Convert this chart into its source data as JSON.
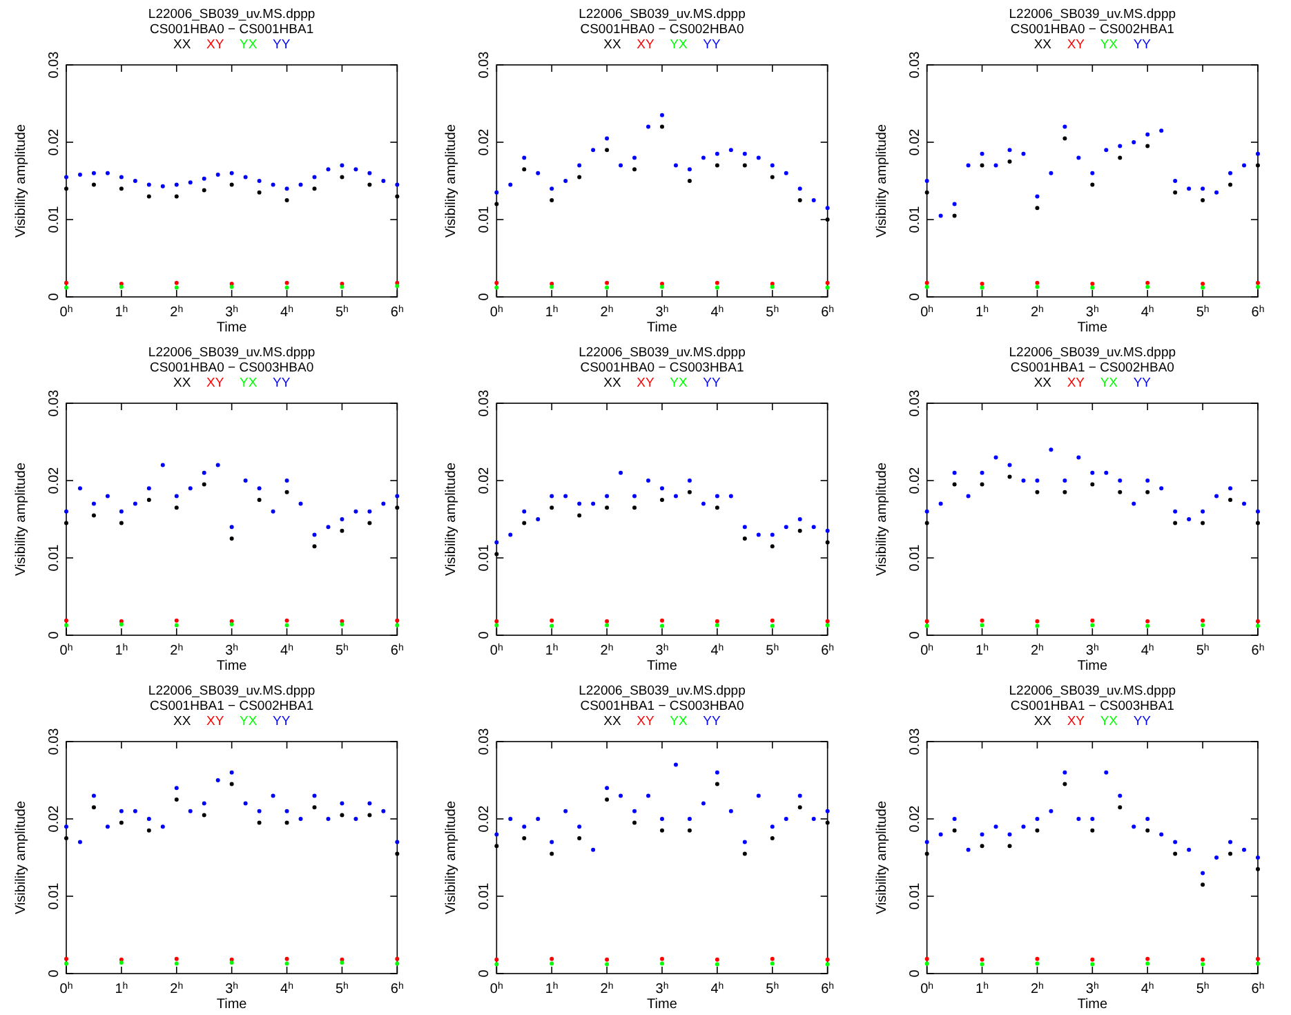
{
  "chart_data": [
    {
      "type": "scatter",
      "title": "L22006_SB039_uv.MS.dppp",
      "subtitle": "CS001HBA0 − CS001HBA1",
      "xlabel": "Time",
      "ylabel": "Visibility amplitude",
      "legend": "top",
      "marker": "circle",
      "xlim": [
        0,
        6
      ],
      "xticks": [
        {
          "value": 0,
          "label": "0$^{h}$"
        },
        {
          "value": 1,
          "label": "1$^{h}$"
        },
        {
          "value": 2,
          "label": "2$^{h}$"
        },
        {
          "value": 3,
          "label": "3$^{h}$"
        },
        {
          "value": 4,
          "label": "4$^{h}$"
        },
        {
          "value": 5,
          "label": "5$^{h}$"
        },
        {
          "value": 6,
          "label": "6$^{h}$"
        }
      ],
      "ylim": [
        0,
        0.03
      ],
      "yticks": [
        0,
        0.01,
        0.02,
        0.03
      ],
      "x": [
        0,
        0.25,
        0.5,
        0.75,
        1,
        1.25,
        1.5,
        1.75,
        2,
        2.25,
        2.5,
        2.75,
        3,
        3.25,
        3.5,
        3.75,
        4,
        4.25,
        4.5,
        4.75,
        5,
        5.25,
        5.5,
        5.75,
        6
      ],
      "series": [
        {
          "name": "XX",
          "color": "#000000",
          "x": [
            0,
            0.5,
            1,
            1.5,
            2,
            2.5,
            3,
            3.5,
            4,
            4.5,
            5,
            5.5,
            6
          ],
          "values": [
            0.014,
            0.0145,
            0.014,
            0.013,
            0.013,
            0.0138,
            0.0145,
            0.0135,
            0.0125,
            0.014,
            0.0155,
            0.0145,
            0.013
          ]
        },
        {
          "name": "XY",
          "color": "#ff0000",
          "x": [
            0,
            1,
            2,
            3,
            4,
            5,
            6
          ],
          "values": [
            0.0018,
            0.0017,
            0.0018,
            0.0017,
            0.0018,
            0.0017,
            0.0018
          ]
        },
        {
          "name": "YX",
          "color": "#00ff00",
          "x": [
            0,
            1,
            2,
            3,
            4,
            5,
            6
          ],
          "values": [
            0.0012,
            0.0013,
            0.0012,
            0.0013,
            0.0012,
            0.0013,
            0.0014
          ]
        },
        {
          "name": "YY",
          "color": "#0000ff",
          "values": [
            0.0155,
            0.0158,
            0.016,
            0.016,
            0.0155,
            0.015,
            0.0145,
            0.0143,
            0.0145,
            0.0148,
            0.0153,
            0.0158,
            0.016,
            0.0155,
            0.015,
            0.0145,
            0.014,
            0.0145,
            0.0155,
            0.0165,
            0.017,
            0.0165,
            0.016,
            0.015,
            0.0145
          ]
        }
      ]
    },
    {
      "type": "scatter",
      "title": "L22006_SB039_uv.MS.dppp",
      "subtitle": "CS001HBA0 − CS002HBA0",
      "xlabel": "Time",
      "ylabel": "Visibility amplitude",
      "legend": "top",
      "marker": "circle",
      "xlim": [
        0,
        6
      ],
      "xticks": [
        {
          "value": 0,
          "label": "0$^{h}$"
        },
        {
          "value": 1,
          "label": "1$^{h}$"
        },
        {
          "value": 2,
          "label": "2$^{h}$"
        },
        {
          "value": 3,
          "label": "3$^{h}$"
        },
        {
          "value": 4,
          "label": "4$^{h}$"
        },
        {
          "value": 5,
          "label": "5$^{h}$"
        },
        {
          "value": 6,
          "label": "6$^{h}$"
        }
      ],
      "ylim": [
        0,
        0.03
      ],
      "yticks": [
        0,
        0.01,
        0.02,
        0.03
      ],
      "x": [
        0,
        0.25,
        0.5,
        0.75,
        1,
        1.25,
        1.5,
        1.75,
        2,
        2.25,
        2.5,
        2.75,
        3,
        3.25,
        3.5,
        3.75,
        4,
        4.25,
        4.5,
        4.75,
        5,
        5.25,
        5.5,
        5.75,
        6
      ],
      "series": [
        {
          "name": "XX",
          "color": "#000000",
          "x": [
            0,
            0.5,
            1,
            1.5,
            2,
            2.5,
            3,
            3.5,
            4,
            4.5,
            5,
            5.5,
            6
          ],
          "values": [
            0.012,
            0.0165,
            0.0125,
            0.0155,
            0.019,
            0.0165,
            0.022,
            0.015,
            0.017,
            0.017,
            0.0155,
            0.0125,
            0.01
          ]
        },
        {
          "name": "XY",
          "color": "#ff0000",
          "x": [
            0,
            1,
            2,
            3,
            4,
            5,
            6
          ],
          "values": [
            0.0018,
            0.0017,
            0.0018,
            0.0017,
            0.0018,
            0.0017,
            0.0018
          ]
        },
        {
          "name": "YX",
          "color": "#00ff00",
          "x": [
            0,
            1,
            2,
            3,
            4,
            5,
            6
          ],
          "values": [
            0.0012,
            0.0013,
            0.0012,
            0.0013,
            0.0012,
            0.0013,
            0.0012
          ]
        },
        {
          "name": "YY",
          "color": "#0000ff",
          "values": [
            0.0135,
            0.0145,
            0.018,
            0.016,
            0.014,
            0.015,
            0.017,
            0.019,
            0.0205,
            0.017,
            0.018,
            0.022,
            0.0235,
            0.017,
            0.0165,
            0.018,
            0.0185,
            0.019,
            0.0185,
            0.018,
            0.017,
            0.016,
            0.014,
            0.0125,
            0.0115
          ]
        }
      ]
    },
    {
      "type": "scatter",
      "title": "L22006_SB039_uv.MS.dppp",
      "subtitle": "CS001HBA0 − CS002HBA1",
      "xlabel": "Time",
      "ylabel": "Visibility amplitude",
      "legend": "top",
      "marker": "circle",
      "xlim": [
        0,
        6
      ],
      "xticks": [
        {
          "value": 0,
          "label": "0$^{h}$"
        },
        {
          "value": 1,
          "label": "1$^{h}$"
        },
        {
          "value": 2,
          "label": "2$^{h}$"
        },
        {
          "value": 3,
          "label": "3$^{h}$"
        },
        {
          "value": 4,
          "label": "4$^{h}$"
        },
        {
          "value": 5,
          "label": "5$^{h}$"
        },
        {
          "value": 6,
          "label": "6$^{h}$"
        }
      ],
      "ylim": [
        0,
        0.03
      ],
      "yticks": [
        0,
        0.01,
        0.02,
        0.03
      ],
      "x": [
        0,
        0.25,
        0.5,
        0.75,
        1,
        1.25,
        1.5,
        1.75,
        2,
        2.25,
        2.5,
        2.75,
        3,
        3.25,
        3.5,
        3.75,
        4,
        4.25,
        4.5,
        4.75,
        5,
        5.25,
        5.5,
        5.75,
        6
      ],
      "series": [
        {
          "name": "XX",
          "color": "#000000",
          "x": [
            0,
            0.5,
            1,
            1.5,
            2,
            2.5,
            3,
            3.5,
            4,
            4.5,
            5,
            5.5,
            6
          ],
          "values": [
            0.0135,
            0.0105,
            0.017,
            0.0175,
            0.0115,
            0.0205,
            0.0145,
            0.018,
            0.0195,
            0.0135,
            0.0125,
            0.0145,
            0.017
          ]
        },
        {
          "name": "XY",
          "color": "#ff0000",
          "x": [
            0,
            1,
            2,
            3,
            4,
            5,
            6
          ],
          "values": [
            0.0018,
            0.0017,
            0.0018,
            0.0017,
            0.0018,
            0.0017,
            0.0018
          ]
        },
        {
          "name": "YX",
          "color": "#00ff00",
          "x": [
            0,
            1,
            2,
            3,
            4,
            5,
            6
          ],
          "values": [
            0.0013,
            0.0012,
            0.0013,
            0.0012,
            0.0013,
            0.0012,
            0.0013
          ]
        },
        {
          "name": "YY",
          "color": "#0000ff",
          "values": [
            0.015,
            0.0105,
            0.012,
            0.017,
            0.0185,
            0.017,
            0.019,
            0.0185,
            0.013,
            0.016,
            0.022,
            0.018,
            0.016,
            0.019,
            0.0195,
            0.02,
            0.021,
            0.0215,
            0.015,
            0.014,
            0.014,
            0.0135,
            0.016,
            0.017,
            0.0185
          ]
        }
      ]
    },
    {
      "type": "scatter",
      "title": "L22006_SB039_uv.MS.dppp",
      "subtitle": "CS001HBA0 − CS003HBA0",
      "xlabel": "Time",
      "ylabel": "Visibility amplitude",
      "legend": "top",
      "marker": "circle",
      "xlim": [
        0,
        6
      ],
      "xticks": [
        {
          "value": 0,
          "label": "0$^{h}$"
        },
        {
          "value": 1,
          "label": "1$^{h}$"
        },
        {
          "value": 2,
          "label": "2$^{h}$"
        },
        {
          "value": 3,
          "label": "3$^{h}$"
        },
        {
          "value": 4,
          "label": "4$^{h}$"
        },
        {
          "value": 5,
          "label": "5$^{h}$"
        },
        {
          "value": 6,
          "label": "6$^{h}$"
        }
      ],
      "ylim": [
        0,
        0.03
      ],
      "yticks": [
        0,
        0.01,
        0.02,
        0.03
      ],
      "x": [
        0,
        0.25,
        0.5,
        0.75,
        1,
        1.25,
        1.5,
        1.75,
        2,
        2.25,
        2.5,
        2.75,
        3,
        3.25,
        3.5,
        3.75,
        4,
        4.25,
        4.5,
        4.75,
        5,
        5.25,
        5.5,
        5.75,
        6
      ],
      "series": [
        {
          "name": "XX",
          "color": "#000000",
          "x": [
            0,
            0.5,
            1,
            1.5,
            2,
            2.5,
            3,
            3.5,
            4,
            4.5,
            5,
            5.5,
            6
          ],
          "values": [
            0.0145,
            0.0155,
            0.0145,
            0.0175,
            0.0165,
            0.0195,
            0.0125,
            0.0175,
            0.0185,
            0.0115,
            0.0135,
            0.0145,
            0.0165
          ]
        },
        {
          "name": "XY",
          "color": "#ff0000",
          "x": [
            0,
            1,
            2,
            3,
            4,
            5,
            6
          ],
          "values": [
            0.0019,
            0.0018,
            0.0019,
            0.0018,
            0.0019,
            0.0018,
            0.0019
          ]
        },
        {
          "name": "YX",
          "color": "#00ff00",
          "x": [
            0,
            1,
            2,
            3,
            4,
            5,
            6
          ],
          "values": [
            0.0013,
            0.0014,
            0.0013,
            0.0014,
            0.0013,
            0.0014,
            0.0013
          ]
        },
        {
          "name": "YY",
          "color": "#0000ff",
          "values": [
            0.016,
            0.019,
            0.017,
            0.018,
            0.016,
            0.017,
            0.019,
            0.022,
            0.018,
            0.019,
            0.021,
            0.022,
            0.014,
            0.02,
            0.019,
            0.016,
            0.02,
            0.017,
            0.013,
            0.014,
            0.015,
            0.016,
            0.016,
            0.017,
            0.018
          ]
        }
      ]
    },
    {
      "type": "scatter",
      "title": "L22006_SB039_uv.MS.dppp",
      "subtitle": "CS001HBA0 − CS003HBA1",
      "xlabel": "Time",
      "ylabel": "Visibility amplitude",
      "legend": "top",
      "marker": "circle",
      "xlim": [
        0,
        6
      ],
      "xticks": [
        {
          "value": 0,
          "label": "0$^{h}$"
        },
        {
          "value": 1,
          "label": "1$^{h}$"
        },
        {
          "value": 2,
          "label": "2$^{h}$"
        },
        {
          "value": 3,
          "label": "3$^{h}$"
        },
        {
          "value": 4,
          "label": "4$^{h}$"
        },
        {
          "value": 5,
          "label": "5$^{h}$"
        },
        {
          "value": 6,
          "label": "6$^{h}$"
        }
      ],
      "ylim": [
        0,
        0.03
      ],
      "yticks": [
        0,
        0.01,
        0.02,
        0.03
      ],
      "x": [
        0,
        0.25,
        0.5,
        0.75,
        1,
        1.25,
        1.5,
        1.75,
        2,
        2.25,
        2.5,
        2.75,
        3,
        3.25,
        3.5,
        3.75,
        4,
        4.25,
        4.5,
        4.75,
        5,
        5.25,
        5.5,
        5.75,
        6
      ],
      "series": [
        {
          "name": "XX",
          "color": "#000000",
          "x": [
            0,
            0.5,
            1,
            1.5,
            2,
            2.5,
            3,
            3.5,
            4,
            4.5,
            5,
            5.5,
            6
          ],
          "values": [
            0.0105,
            0.0145,
            0.0165,
            0.0155,
            0.0165,
            0.0165,
            0.0175,
            0.0185,
            0.0165,
            0.0125,
            0.0115,
            0.0135,
            0.012
          ]
        },
        {
          "name": "XY",
          "color": "#ff0000",
          "x": [
            0,
            1,
            2,
            3,
            4,
            5,
            6
          ],
          "values": [
            0.0018,
            0.0019,
            0.0018,
            0.0019,
            0.0018,
            0.0019,
            0.0018
          ]
        },
        {
          "name": "YX",
          "color": "#00ff00",
          "x": [
            0,
            1,
            2,
            3,
            4,
            5,
            6
          ],
          "values": [
            0.0013,
            0.0012,
            0.0013,
            0.0012,
            0.0013,
            0.0012,
            0.0013
          ]
        },
        {
          "name": "YY",
          "color": "#0000ff",
          "values": [
            0.012,
            0.013,
            0.016,
            0.015,
            0.018,
            0.018,
            0.017,
            0.017,
            0.018,
            0.021,
            0.018,
            0.02,
            0.019,
            0.018,
            0.02,
            0.017,
            0.018,
            0.018,
            0.014,
            0.013,
            0.013,
            0.014,
            0.015,
            0.014,
            0.0135
          ]
        }
      ]
    },
    {
      "type": "scatter",
      "title": "L22006_SB039_uv.MS.dppp",
      "subtitle": "CS001HBA1 − CS002HBA0",
      "xlabel": "Time",
      "ylabel": "Visibility amplitude",
      "legend": "top",
      "marker": "circle",
      "xlim": [
        0,
        6
      ],
      "xticks": [
        {
          "value": 0,
          "label": "0$^{h}$"
        },
        {
          "value": 1,
          "label": "1$^{h}$"
        },
        {
          "value": 2,
          "label": "2$^{h}$"
        },
        {
          "value": 3,
          "label": "3$^{h}$"
        },
        {
          "value": 4,
          "label": "4$^{h}$"
        },
        {
          "value": 5,
          "label": "5$^{h}$"
        },
        {
          "value": 6,
          "label": "6$^{h}$"
        }
      ],
      "ylim": [
        0,
        0.03
      ],
      "yticks": [
        0,
        0.01,
        0.02,
        0.03
      ],
      "x": [
        0,
        0.25,
        0.5,
        0.75,
        1,
        1.25,
        1.5,
        1.75,
        2,
        2.25,
        2.5,
        2.75,
        3,
        3.25,
        3.5,
        3.75,
        4,
        4.25,
        4.5,
        4.75,
        5,
        5.25,
        5.5,
        5.75,
        6
      ],
      "series": [
        {
          "name": "XX",
          "color": "#000000",
          "x": [
            0,
            0.5,
            1,
            1.5,
            2,
            2.5,
            3,
            3.5,
            4,
            4.5,
            5,
            5.5,
            6
          ],
          "values": [
            0.0145,
            0.0195,
            0.0195,
            0.0205,
            0.0185,
            0.0185,
            0.0195,
            0.0185,
            0.0185,
            0.0145,
            0.0145,
            0.0175,
            0.0145
          ]
        },
        {
          "name": "XY",
          "color": "#ff0000",
          "x": [
            0,
            1,
            2,
            3,
            4,
            5,
            6
          ],
          "values": [
            0.0018,
            0.0019,
            0.0018,
            0.0019,
            0.0018,
            0.0019,
            0.0018
          ]
        },
        {
          "name": "YX",
          "color": "#00ff00",
          "x": [
            0,
            1,
            2,
            3,
            4,
            5,
            6
          ],
          "values": [
            0.0012,
            0.0013,
            0.0012,
            0.0013,
            0.0012,
            0.0013,
            0.0012
          ]
        },
        {
          "name": "YY",
          "color": "#0000ff",
          "values": [
            0.016,
            0.017,
            0.021,
            0.018,
            0.021,
            0.023,
            0.022,
            0.02,
            0.02,
            0.024,
            0.02,
            0.023,
            0.021,
            0.021,
            0.02,
            0.017,
            0.02,
            0.019,
            0.016,
            0.015,
            0.016,
            0.018,
            0.019,
            0.017,
            0.016
          ]
        }
      ]
    },
    {
      "type": "scatter",
      "title": "L22006_SB039_uv.MS.dppp",
      "subtitle": "CS001HBA1 − CS002HBA1",
      "xlabel": "Time",
      "ylabel": "Visibility amplitude",
      "legend": "top",
      "marker": "circle",
      "xlim": [
        0,
        6
      ],
      "xticks": [
        {
          "value": 0,
          "label": "0$^{h}$"
        },
        {
          "value": 1,
          "label": "1$^{h}$"
        },
        {
          "value": 2,
          "label": "2$^{h}$"
        },
        {
          "value": 3,
          "label": "3$^{h}$"
        },
        {
          "value": 4,
          "label": "4$^{h}$"
        },
        {
          "value": 5,
          "label": "5$^{h}$"
        },
        {
          "value": 6,
          "label": "6$^{h}$"
        }
      ],
      "ylim": [
        0,
        0.03
      ],
      "yticks": [
        0,
        0.01,
        0.02,
        0.03
      ],
      "x": [
        0,
        0.25,
        0.5,
        0.75,
        1,
        1.25,
        1.5,
        1.75,
        2,
        2.25,
        2.5,
        2.75,
        3,
        3.25,
        3.5,
        3.75,
        4,
        4.25,
        4.5,
        4.75,
        5,
        5.25,
        5.5,
        5.75,
        6
      ],
      "series": [
        {
          "name": "XX",
          "color": "#000000",
          "x": [
            0,
            0.5,
            1,
            1.5,
            2,
            2.5,
            3,
            3.5,
            4,
            4.5,
            5,
            5.5,
            6
          ],
          "values": [
            0.0175,
            0.0215,
            0.0195,
            0.0185,
            0.0225,
            0.0205,
            0.0245,
            0.0195,
            0.0195,
            0.0215,
            0.0205,
            0.0205,
            0.0155
          ]
        },
        {
          "name": "XY",
          "color": "#ff0000",
          "x": [
            0,
            1,
            2,
            3,
            4,
            5,
            6
          ],
          "values": [
            0.0019,
            0.0018,
            0.0019,
            0.0018,
            0.0019,
            0.0018,
            0.0019
          ]
        },
        {
          "name": "YX",
          "color": "#00ff00",
          "x": [
            0,
            1,
            2,
            3,
            4,
            5,
            6
          ],
          "values": [
            0.0013,
            0.0014,
            0.0013,
            0.0014,
            0.0013,
            0.0014,
            0.0013
          ]
        },
        {
          "name": "YY",
          "color": "#0000ff",
          "values": [
            0.019,
            0.017,
            0.023,
            0.019,
            0.021,
            0.021,
            0.02,
            0.019,
            0.024,
            0.021,
            0.022,
            0.025,
            0.026,
            0.022,
            0.021,
            0.023,
            0.021,
            0.02,
            0.023,
            0.02,
            0.022,
            0.02,
            0.022,
            0.021,
            0.017
          ]
        }
      ]
    },
    {
      "type": "scatter",
      "title": "L22006_SB039_uv.MS.dppp",
      "subtitle": "CS001HBA1 − CS003HBA0",
      "xlabel": "Time",
      "ylabel": "Visibility amplitude",
      "legend": "top",
      "marker": "circle",
      "xlim": [
        0,
        6
      ],
      "xticks": [
        {
          "value": 0,
          "label": "0$^{h}$"
        },
        {
          "value": 1,
          "label": "1$^{h}$"
        },
        {
          "value": 2,
          "label": "2$^{h}$"
        },
        {
          "value": 3,
          "label": "3$^{h}$"
        },
        {
          "value": 4,
          "label": "4$^{h}$"
        },
        {
          "value": 5,
          "label": "5$^{h}$"
        },
        {
          "value": 6,
          "label": "6$^{h}$"
        }
      ],
      "ylim": [
        0,
        0.03
      ],
      "yticks": [
        0,
        0.01,
        0.02,
        0.03
      ],
      "x": [
        0,
        0.25,
        0.5,
        0.75,
        1,
        1.25,
        1.5,
        1.75,
        2,
        2.25,
        2.5,
        2.75,
        3,
        3.25,
        3.5,
        3.75,
        4,
        4.25,
        4.5,
        4.75,
        5,
        5.25,
        5.5,
        5.75,
        6
      ],
      "series": [
        {
          "name": "XX",
          "color": "#000000",
          "x": [
            0,
            0.5,
            1,
            1.5,
            2,
            2.5,
            3,
            3.5,
            4,
            4.5,
            5,
            5.5,
            6
          ],
          "values": [
            0.0165,
            0.0175,
            0.0155,
            0.0175,
            0.0225,
            0.0195,
            0.0185,
            0.0185,
            0.0245,
            0.0155,
            0.0175,
            0.0215,
            0.0195
          ]
        },
        {
          "name": "XY",
          "color": "#ff0000",
          "x": [
            0,
            1,
            2,
            3,
            4,
            5,
            6
          ],
          "values": [
            0.0018,
            0.0019,
            0.0018,
            0.0019,
            0.0018,
            0.0019,
            0.0018
          ]
        },
        {
          "name": "YX",
          "color": "#00ff00",
          "x": [
            0,
            1,
            2,
            3,
            4,
            5,
            6
          ],
          "values": [
            0.0012,
            0.0013,
            0.0012,
            0.0013,
            0.0012,
            0.0013,
            0.0012
          ]
        },
        {
          "name": "YY",
          "color": "#0000ff",
          "values": [
            0.018,
            0.02,
            0.019,
            0.02,
            0.017,
            0.021,
            0.019,
            0.016,
            0.024,
            0.023,
            0.021,
            0.023,
            0.02,
            0.027,
            0.02,
            0.022,
            0.026,
            0.021,
            0.017,
            0.023,
            0.019,
            0.02,
            0.023,
            0.02,
            0.021
          ]
        }
      ]
    },
    {
      "type": "scatter",
      "title": "L22006_SB039_uv.MS.dppp",
      "subtitle": "CS001HBA1 − CS003HBA1",
      "xlabel": "Time",
      "ylabel": "Visibility amplitude",
      "legend": "top",
      "marker": "circle",
      "xlim": [
        0,
        6
      ],
      "xticks": [
        {
          "value": 0,
          "label": "0$^{h}$"
        },
        {
          "value": 1,
          "label": "1$^{h}$"
        },
        {
          "value": 2,
          "label": "2$^{h}$"
        },
        {
          "value": 3,
          "label": "3$^{h}$"
        },
        {
          "value": 4,
          "label": "4$^{h}$"
        },
        {
          "value": 5,
          "label": "5$^{h}$"
        },
        {
          "value": 6,
          "label": "6$^{h}$"
        }
      ],
      "ylim": [
        0,
        0.03
      ],
      "yticks": [
        0,
        0.01,
        0.02,
        0.03
      ],
      "x": [
        0,
        0.25,
        0.5,
        0.75,
        1,
        1.25,
        1.5,
        1.75,
        2,
        2.25,
        2.5,
        2.75,
        3,
        3.25,
        3.5,
        3.75,
        4,
        4.25,
        4.5,
        4.75,
        5,
        5.25,
        5.5,
        5.75,
        6
      ],
      "series": [
        {
          "name": "XX",
          "color": "#000000",
          "x": [
            0,
            0.5,
            1,
            1.5,
            2,
            2.5,
            3,
            3.5,
            4,
            4.5,
            5,
            5.5,
            6
          ],
          "values": [
            0.0155,
            0.0185,
            0.0165,
            0.0165,
            0.0185,
            0.0245,
            0.0185,
            0.0215,
            0.0185,
            0.0155,
            0.0115,
            0.0155,
            0.0135
          ]
        },
        {
          "name": "XY",
          "color": "#ff0000",
          "x": [
            0,
            1,
            2,
            3,
            4,
            5,
            6
          ],
          "values": [
            0.0019,
            0.0018,
            0.0019,
            0.0018,
            0.0019,
            0.0018,
            0.0019
          ]
        },
        {
          "name": "YX",
          "color": "#00ff00",
          "x": [
            0,
            1,
            2,
            3,
            4,
            5,
            6
          ],
          "values": [
            0.0013,
            0.0012,
            0.0013,
            0.0012,
            0.0013,
            0.0012,
            0.0013
          ]
        },
        {
          "name": "YY",
          "color": "#0000ff",
          "values": [
            0.017,
            0.018,
            0.02,
            0.016,
            0.018,
            0.019,
            0.018,
            0.019,
            0.02,
            0.021,
            0.026,
            0.02,
            0.02,
            0.026,
            0.023,
            0.019,
            0.02,
            0.018,
            0.017,
            0.016,
            0.013,
            0.015,
            0.017,
            0.016,
            0.015
          ]
        }
      ]
    }
  ]
}
